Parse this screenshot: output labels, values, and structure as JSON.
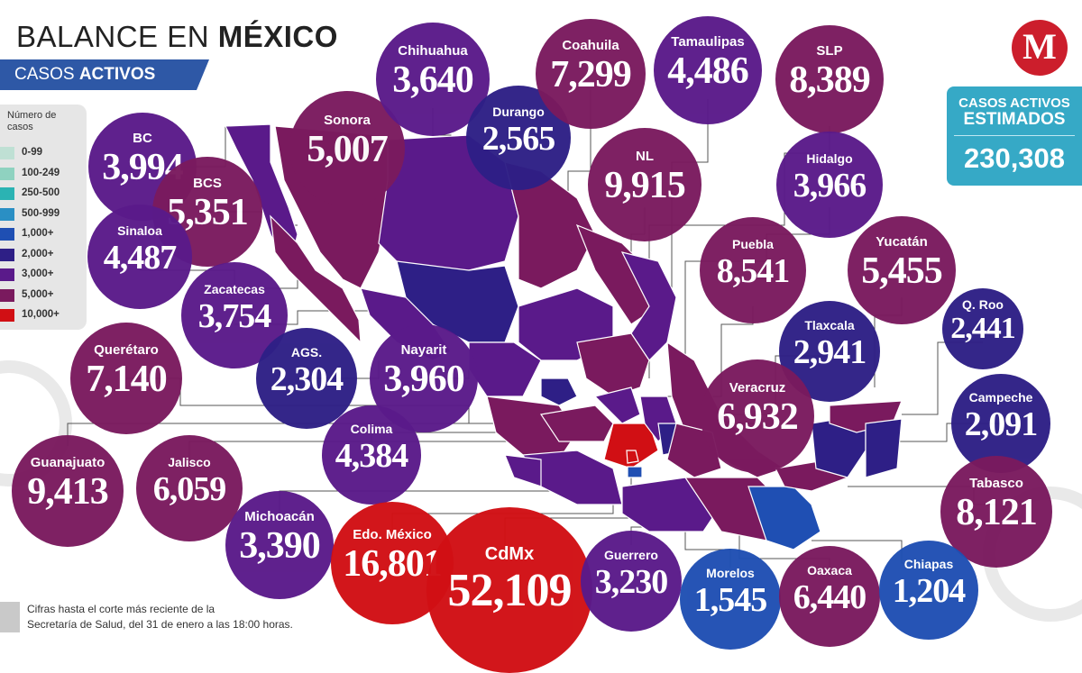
{
  "header": {
    "title_light": "BALANCE EN",
    "title_bold": "MÉXICO",
    "subtitle_light": "CASOS",
    "subtitle_bold": "ACTIVOS"
  },
  "logo": {
    "letter": "M",
    "color": "#cc1e2c"
  },
  "estimate": {
    "line1": "CASOS ACTIVOS",
    "line2": "ESTIMADOS",
    "value": "230,308",
    "color": "#36a9c6"
  },
  "legend": {
    "title": "Número de casos",
    "items": [
      {
        "label": "0-99",
        "color": "#bfe0d4"
      },
      {
        "label": "100-249",
        "color": "#8fd2c0"
      },
      {
        "label": "250-500",
        "color": "#2bb3b3"
      },
      {
        "label": "500-999",
        "color": "#2a8fc4"
      },
      {
        "label": "1,000+",
        "color": "#1f4fb3"
      },
      {
        "label": "2,000+",
        "color": "#2e1f86"
      },
      {
        "label": "3,000+",
        "color": "#5a1a8a"
      },
      {
        "label": "5,000+",
        "color": "#7a1a5e"
      },
      {
        "label": "10,000+",
        "color": "#d10f14"
      }
    ]
  },
  "states": [
    {
      "name": "BC",
      "value": "3,994",
      "color": "#5a1a8a"
    },
    {
      "name": "BCS",
      "value": "5,351",
      "color": "#7a1a5e"
    },
    {
      "name": "Sonora",
      "value": "5,007",
      "color": "#7a1a5e"
    },
    {
      "name": "Chihuahua",
      "value": "3,640",
      "color": "#5a1a8a"
    },
    {
      "name": "Durango",
      "value": "2,565",
      "color": "#2e1f86"
    },
    {
      "name": "Coahuila",
      "value": "7,299",
      "color": "#7a1a5e"
    },
    {
      "name": "Tamaulipas",
      "value": "4,486",
      "color": "#5a1a8a"
    },
    {
      "name": "SLP",
      "value": "8,389",
      "color": "#7a1a5e"
    },
    {
      "name": "NL",
      "value": "9,915",
      "color": "#7a1a5e"
    },
    {
      "name": "Hidalgo",
      "value": "3,966",
      "color": "#5a1a8a"
    },
    {
      "name": "Sinaloa",
      "value": "4,487",
      "color": "#5a1a8a"
    },
    {
      "name": "Zacatecas",
      "value": "3,754",
      "color": "#5a1a8a"
    },
    {
      "name": "AGS.",
      "value": "2,304",
      "color": "#2e1f86"
    },
    {
      "name": "Nayarit",
      "value": "3,960",
      "color": "#5a1a8a"
    },
    {
      "name": "Puebla",
      "value": "8,541",
      "color": "#7a1a5e"
    },
    {
      "name": "Yucatán",
      "value": "5,455",
      "color": "#7a1a5e"
    },
    {
      "name": "Tlaxcala",
      "value": "2,941",
      "color": "#2e1f86"
    },
    {
      "name": "Q. Roo",
      "value": "2,441",
      "color": "#2e1f86"
    },
    {
      "name": "Querétaro",
      "value": "7,140",
      "color": "#7a1a5e"
    },
    {
      "name": "Veracruz",
      "value": "6,932",
      "color": "#7a1a5e"
    },
    {
      "name": "Campeche",
      "value": "2,091",
      "color": "#2e1f86"
    },
    {
      "name": "Colima",
      "value": "4,384",
      "color": "#5a1a8a"
    },
    {
      "name": "Guanajuato",
      "value": "9,413",
      "color": "#7a1a5e"
    },
    {
      "name": "Jalisco",
      "value": "6,059",
      "color": "#7a1a5e"
    },
    {
      "name": "Tabasco",
      "value": "8,121",
      "color": "#7a1a5e"
    },
    {
      "name": "Michoacán",
      "value": "3,390",
      "color": "#5a1a8a"
    },
    {
      "name": "Edo. México",
      "value": "16,801",
      "color": "#d10f14"
    },
    {
      "name": "CdMx",
      "value": "52,109",
      "color": "#d10f14"
    },
    {
      "name": "Guerrero",
      "value": "3,230",
      "color": "#5a1a8a"
    },
    {
      "name": "Morelos",
      "value": "1,545",
      "color": "#1f4fb3"
    },
    {
      "name": "Oaxaca",
      "value": "6,440",
      "color": "#7a1a5e"
    },
    {
      "name": "Chiapas",
      "value": "1,204",
      "color": "#1f4fb3"
    }
  ],
  "footnote": {
    "line1": "Cifras hasta el corte más reciente de la",
    "line2": "Secretaría de Salud, del 31 de enero a las 18:00 horas."
  }
}
